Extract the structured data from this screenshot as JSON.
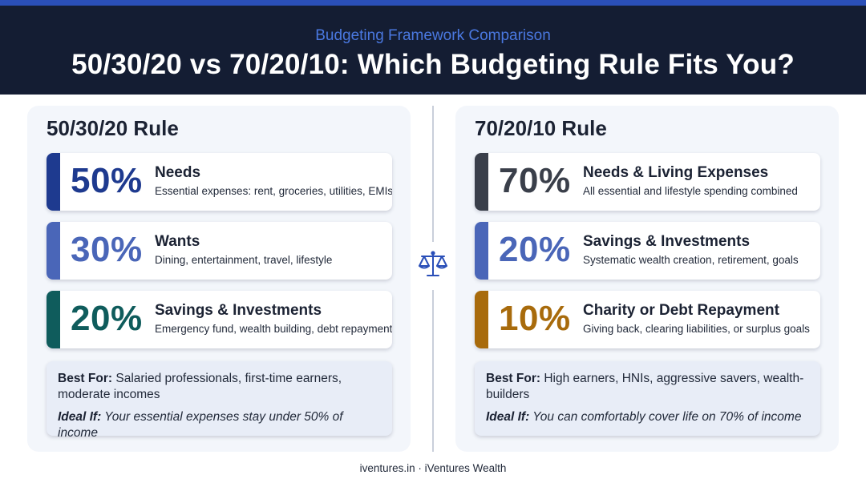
{
  "header": {
    "subtitle": "Budgeting Framework Comparison",
    "title": "50/30/20 vs 70/20/10: Which Budgeting Rule Fits You?"
  },
  "colors": {
    "header_bg": "#141d33",
    "accent_blue": "#2a4fb8",
    "navy": "#1e3a8f",
    "mid_blue": "#4a66b8",
    "teal": "#0f5c5c",
    "slate": "#3a3f4a",
    "amber": "#a86b0c"
  },
  "left": {
    "title": "50/30/20 Rule",
    "items": [
      {
        "pct": "50%",
        "label": "Needs",
        "desc": "Essential expenses: rent, groceries, utilities, EMIs",
        "color": "#1e3a8f"
      },
      {
        "pct": "30%",
        "label": "Wants",
        "desc": "Dining, entertainment, travel, lifestyle",
        "color": "#4a66b8"
      },
      {
        "pct": "20%",
        "label": "Savings & Investments",
        "desc": "Emergency fund, wealth building, debt repayment",
        "color": "#0f5c5c"
      }
    ],
    "best_label": "Best For:",
    "best_text": "Salaried professionals, first-time earners, moderate incomes",
    "ideal_label": "Ideal If:",
    "ideal_text": "Your essential expenses stay under 50% of income"
  },
  "right": {
    "title": "70/20/10 Rule",
    "items": [
      {
        "pct": "70%",
        "label": "Needs & Living Expenses",
        "desc": "All essential and lifestyle spending combined",
        "color": "#3a3f4a"
      },
      {
        "pct": "20%",
        "label": "Savings & Investments",
        "desc": "Systematic wealth creation, retirement, goals",
        "color": "#4a66b8"
      },
      {
        "pct": "10%",
        "label": "Charity or Debt Repayment",
        "desc": "Giving back, clearing liabilities, or surplus goals",
        "color": "#a86b0c"
      }
    ],
    "best_label": "Best For:",
    "best_text": "High earners, HNIs, aggressive savers, wealth-builders",
    "ideal_label": "Ideal If:",
    "ideal_text": "You can comfortably cover life on 70% of income"
  },
  "icons": {
    "center": "balance-scale-icon"
  },
  "footer": {
    "text": "iventures.in · iVentures Wealth"
  }
}
